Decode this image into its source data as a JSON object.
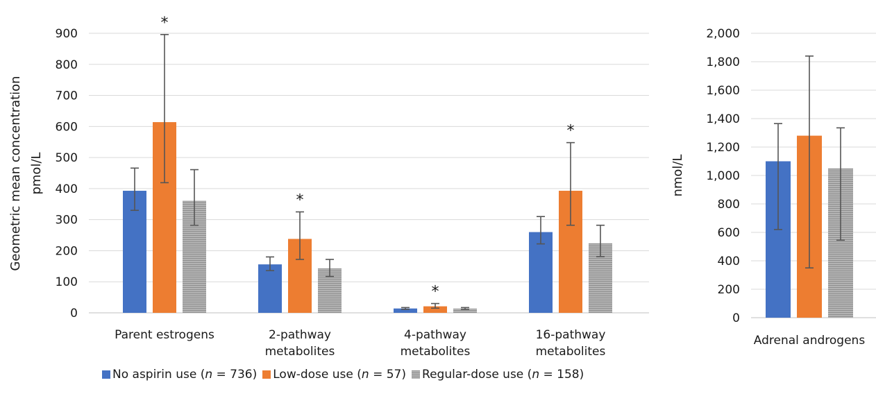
{
  "colors": {
    "no_aspirin": "#4472C4",
    "low_dose": "#ED7D31",
    "regular_dose": "#A5A5A5",
    "grid": "#d9d9d9",
    "error": "#555555"
  },
  "legend": [
    {
      "key": "no_aspirin",
      "label_pre": "No aspirin use (",
      "n_symbol": "n",
      "label_post": " = 736)"
    },
    {
      "key": "low_dose",
      "label_pre": "Low-dose use (",
      "n_symbol": "n",
      "label_post": " = 57)"
    },
    {
      "key": "regular_dose",
      "label_pre": "Regular-dose use (",
      "n_symbol": "n",
      "label_post": " = 158)"
    }
  ],
  "chart_data": [
    {
      "type": "bar",
      "ylabel_line1": "Geometric mean concentration",
      "ylabel_line2": "pmol/L",
      "ylim": [
        0,
        900
      ],
      "yticks": [
        0,
        100,
        200,
        300,
        400,
        500,
        600,
        700,
        800,
        900
      ],
      "ytick_labels": [
        "0",
        "100",
        "200",
        "300",
        "400",
        "500",
        "600",
        "700",
        "800",
        "900"
      ],
      "grid": true,
      "categories": [
        [
          "Parent estrogens"
        ],
        [
          "2-pathway",
          "metabolites"
        ],
        [
          "4-pathway",
          "metabolites"
        ],
        [
          "16-pathway",
          "metabolites"
        ]
      ],
      "series": [
        {
          "key": "no_aspirin",
          "values": [
            393,
            156,
            14,
            260
          ],
          "err_low": [
            330,
            136,
            11,
            222
          ],
          "err_high": [
            466,
            180,
            17,
            310
          ]
        },
        {
          "key": "low_dose",
          "values": [
            614,
            238,
            21,
            393
          ],
          "err_low": [
            419,
            172,
            15,
            282
          ],
          "err_high": [
            896,
            325,
            30,
            548
          ]
        },
        {
          "key": "regular_dose",
          "values": [
            361,
            143,
            14,
            224
          ],
          "err_low": [
            282,
            117,
            11,
            181
          ],
          "err_high": [
            461,
            172,
            17,
            282
          ]
        }
      ],
      "significance_marker": "*",
      "significant": [
        [
          false,
          true,
          false
        ],
        [
          false,
          true,
          false
        ],
        [
          false,
          true,
          false
        ],
        [
          false,
          true,
          false
        ]
      ]
    },
    {
      "type": "bar",
      "ylabel": "nmol/L",
      "ylim": [
        0,
        2000
      ],
      "yticks": [
        0,
        200,
        400,
        600,
        800,
        1000,
        1200,
        1400,
        1600,
        1800,
        2000
      ],
      "ytick_labels": [
        "0",
        "200",
        "400",
        "600",
        "800",
        "1,000",
        "1,200",
        "1,400",
        "1,600",
        "1,800",
        "2,000"
      ],
      "grid": true,
      "categories": [
        [
          "Adrenal androgens"
        ]
      ],
      "series": [
        {
          "key": "no_aspirin",
          "values": [
            1100
          ],
          "err_low": [
            620
          ],
          "err_high": [
            1365
          ]
        },
        {
          "key": "low_dose",
          "values": [
            1280
          ],
          "err_low": [
            350
          ],
          "err_high": [
            1840
          ]
        },
        {
          "key": "regular_dose",
          "values": [
            1050
          ],
          "err_low": [
            545
          ],
          "err_high": [
            1335
          ]
        }
      ]
    }
  ]
}
